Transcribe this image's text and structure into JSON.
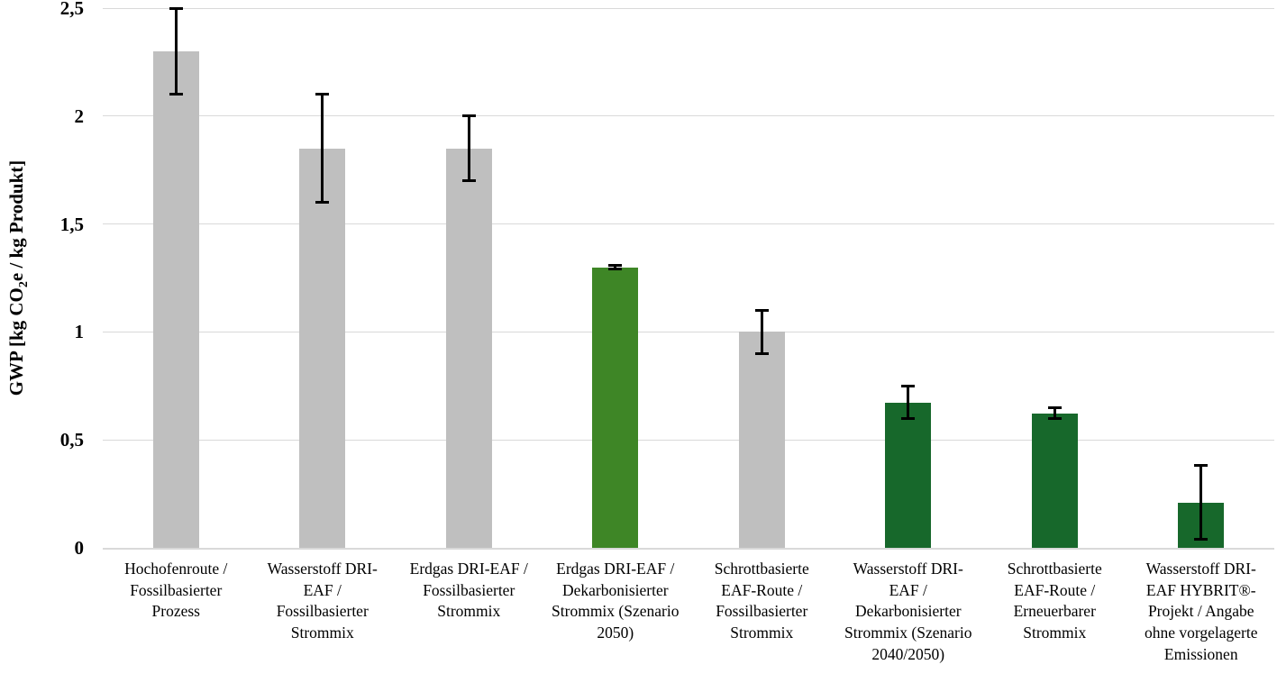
{
  "chart_data": {
    "type": "bar",
    "title": "",
    "ylabel": "GWP [kg CO2e / kg Produkt]",
    "ylabel_parts": {
      "prefix": "GWP [kg CO",
      "subscript": "2",
      "suffix": "e / kg Produkt]"
    },
    "ylim": [
      0,
      2.5
    ],
    "ytick_values": [
      0,
      0.5,
      1,
      1.5,
      2,
      2.5
    ],
    "ytick_labels": [
      "0",
      "0,5",
      "1",
      "1,5",
      "2",
      "2,5"
    ],
    "grid": "horizontal",
    "legend": false,
    "decimal_style": "german-comma",
    "categories": [
      "Hochofenroute / Fossilbasierter Prozess",
      "Wasserstoff DRI-EAF / Fossilbasierter Strommix",
      "Erdgas DRI-EAF / Fossilbasierter Strommix",
      "Erdgas DRI-EAF / Dekarbonisierter Strommix (Szenario 2050)",
      "Schrottbasierte EAF-Route / Fossilbasierter Strommix",
      "Wasserstoff DRI-EAF / Dekarbonisierter Strommix (Szenario 2040/2050)",
      "Schrottbasierte EAF-Route / Erneuerbarer Strommix",
      "Wasserstoff DRI-EAF HYBRIT®-Projekt / Angabe ohne vorgelagerte Emissionen"
    ],
    "values": [
      2.3,
      1.85,
      1.85,
      1.3,
      1.0,
      0.67,
      0.62,
      0.21
    ],
    "error_low": [
      2.1,
      1.6,
      1.7,
      1.29,
      0.9,
      0.6,
      0.6,
      0.04
    ],
    "error_high": [
      2.5,
      2.1,
      2.0,
      1.31,
      1.1,
      0.75,
      0.65,
      0.38
    ],
    "bar_colors": [
      "#BFBFBF",
      "#BFBFBF",
      "#BFBFBF",
      "#3E8626",
      "#BFBFBF",
      "#17682B",
      "#17682B",
      "#17682B"
    ],
    "color_legend": {
      "fossil_route_gray": "#BFBFBF",
      "scenario_green": "#3E8626",
      "decarbonized_green": "#17682B"
    },
    "gridline_color": "#D9D9D9",
    "error_bar_color": "#000000"
  }
}
